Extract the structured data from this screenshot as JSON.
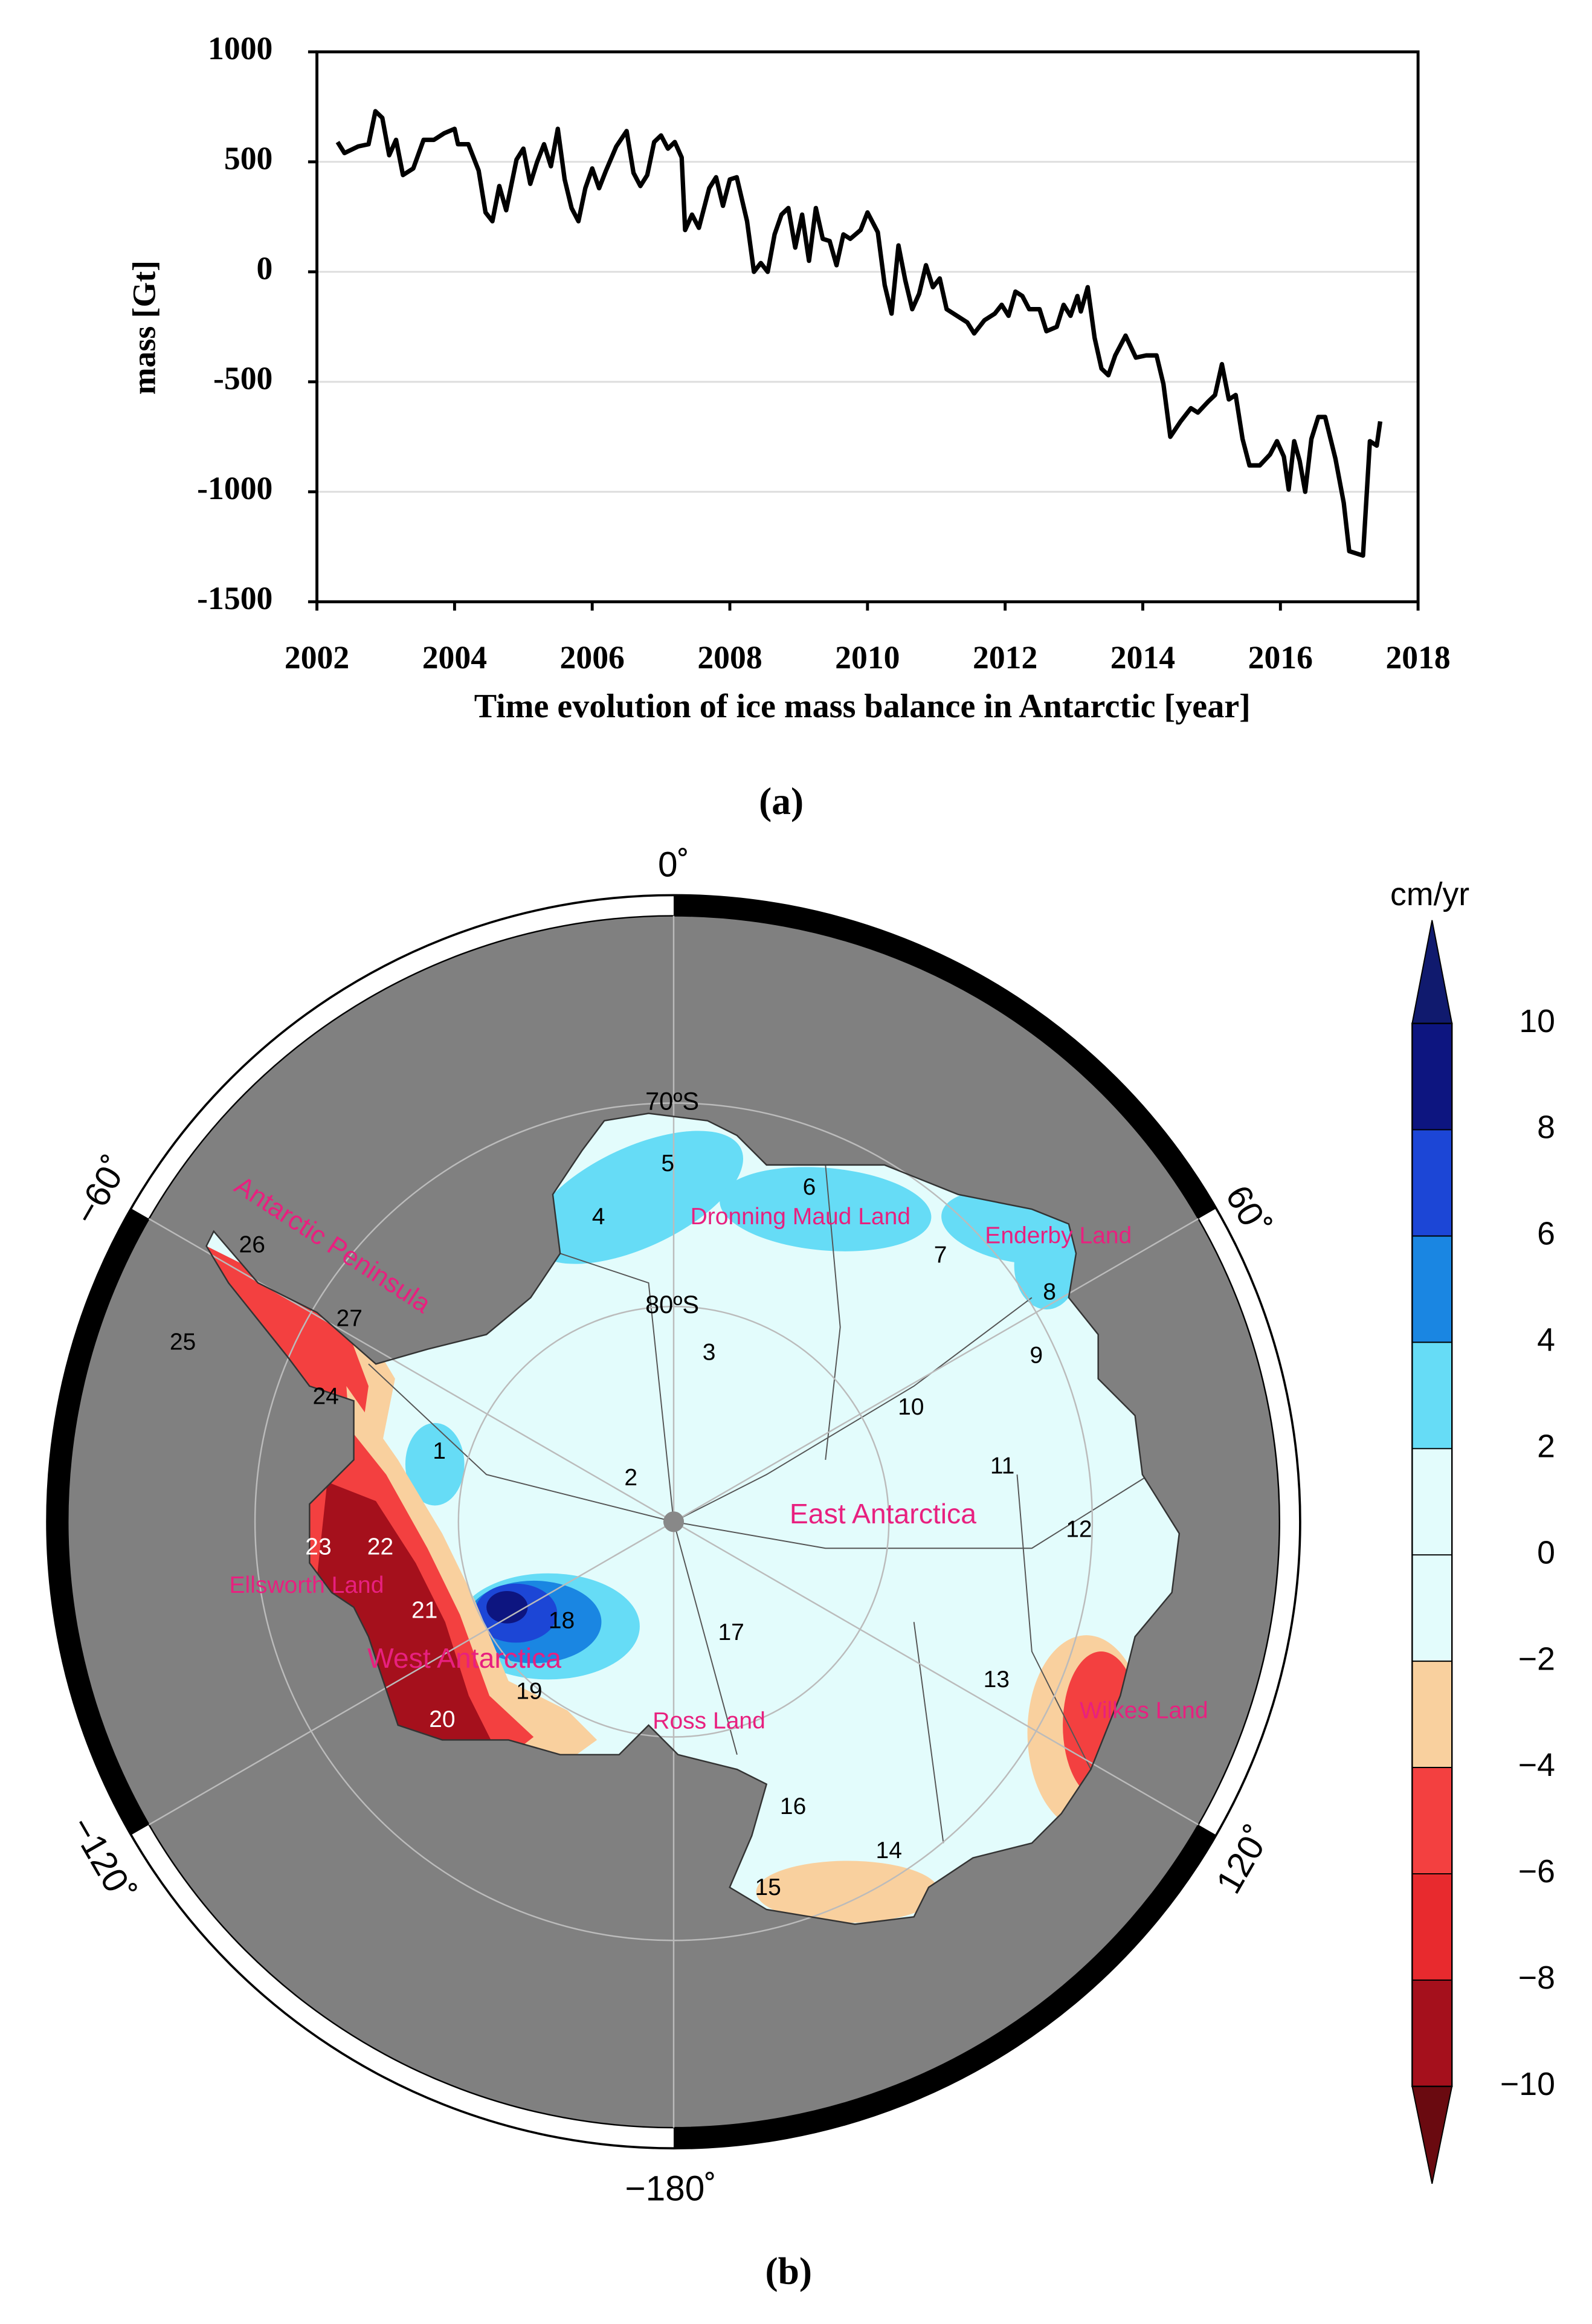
{
  "chart_data": [
    {
      "type": "line",
      "ylabel": "mass [Gt]",
      "xlabel": "Time evolution  of ice mass balance in Antarctic [year]",
      "x": [
        2002.3,
        2002.4,
        2002.6,
        2002.75,
        2002.85,
        2002.95,
        2003.05,
        2003.15,
        2003.25,
        2003.4,
        2003.55,
        2003.7,
        2003.85,
        2004.0,
        2004.05,
        2004.2,
        2004.35,
        2004.45,
        2004.55,
        2004.65,
        2004.75,
        2004.9,
        2005.0,
        2005.1,
        2005.2,
        2005.3,
        2005.4,
        2005.5,
        2005.6,
        2005.7,
        2005.8,
        2005.9,
        2006.0,
        2006.1,
        2006.2,
        2006.35,
        2006.5,
        2006.6,
        2006.7,
        2006.8,
        2006.9,
        2007.0,
        2007.1,
        2007.2,
        2007.3,
        2007.35,
        2007.45,
        2007.55,
        2007.7,
        2007.8,
        2007.9,
        2008.0,
        2008.1,
        2008.25,
        2008.35,
        2008.45,
        2008.55,
        2008.65,
        2008.75,
        2008.85,
        2008.95,
        2009.05,
        2009.15,
        2009.25,
        2009.35,
        2009.45,
        2009.55,
        2009.65,
        2009.75,
        2009.9,
        2010.0,
        2010.15,
        2010.25,
        2010.35,
        2010.45,
        2010.55,
        2010.65,
        2010.75,
        2010.85,
        2010.95,
        2011.05,
        2011.15,
        2011.3,
        2011.45,
        2011.55,
        2011.7,
        2011.85,
        2011.95,
        2012.05,
        2012.15,
        2012.25,
        2012.35,
        2012.5,
        2012.6,
        2012.75,
        2012.85,
        2012.95,
        2013.05,
        2013.1,
        2013.2,
        2013.3,
        2013.4,
        2013.5,
        2013.6,
        2013.75,
        2013.9,
        2014.05,
        2014.2,
        2014.3,
        2014.4,
        2014.55,
        2014.7,
        2014.8,
        2014.95,
        2015.05,
        2015.15,
        2015.25,
        2015.35,
        2015.45,
        2015.55,
        2015.7,
        2015.85,
        2015.95,
        2016.05,
        2016.12,
        2016.2,
        2016.28,
        2016.36,
        2016.45,
        2016.55,
        2016.65,
        2016.8,
        2016.92,
        2017.0,
        2017.2,
        2017.3,
        2017.4,
        2017.45
      ],
      "series": [
        {
          "color": "#000000",
          "values": [
            590,
            540,
            570,
            580,
            730,
            700,
            530,
            600,
            440,
            470,
            600,
            600,
            630,
            650,
            580,
            580,
            460,
            270,
            230,
            390,
            280,
            510,
            560,
            400,
            500,
            580,
            480,
            650,
            420,
            290,
            230,
            380,
            470,
            380,
            460,
            570,
            640,
            450,
            390,
            440,
            590,
            620,
            560,
            590,
            520,
            190,
            260,
            200,
            380,
            430,
            300,
            420,
            430,
            230,
            0,
            40,
            0,
            170,
            260,
            290,
            110,
            260,
            50,
            290,
            150,
            140,
            30,
            170,
            150,
            190,
            270,
            180,
            -60,
            -190,
            120,
            -40,
            -170,
            -100,
            30,
            -70,
            -30,
            -170,
            -200,
            -230,
            -280,
            -220,
            -190,
            -150,
            -200,
            -90,
            -110,
            -170,
            -170,
            -270,
            -250,
            -150,
            -200,
            -110,
            -180,
            -70,
            -300,
            -440,
            -470,
            -380,
            -290,
            -390,
            -380,
            -380,
            -510,
            -750,
            -680,
            -620,
            -640,
            -590,
            -560,
            -420,
            -580,
            -560,
            -760,
            -880,
            -880,
            -830,
            -770,
            -840,
            -990,
            -770,
            -860,
            -1000,
            -760,
            -660,
            -660,
            -850,
            -1050,
            -1270,
            -1290,
            -770,
            -790,
            -680
          ]
        }
      ],
      "xlim": [
        2002,
        2018
      ],
      "xticks": [
        2002,
        2004,
        2006,
        2008,
        2010,
        2012,
        2014,
        2016,
        2018
      ],
      "ylim": [
        -1500,
        1000
      ],
      "yticks": [
        -1500,
        -1000,
        -500,
        0,
        500,
        1000
      ],
      "grid": true
    },
    {
      "type": "map",
      "colorbar_label": "cm/yr",
      "colorbar_ticks": [
        {
          "value": -10,
          "label": "−10"
        },
        {
          "value": -8,
          "label": "−8"
        },
        {
          "value": -6,
          "label": "−6"
        },
        {
          "value": -4,
          "label": "−4"
        },
        {
          "value": -2,
          "label": "−2"
        },
        0,
        2,
        4,
        6,
        8,
        10
      ],
      "colorbar_colors": [
        "#a5101c",
        "#e82a2e",
        "#f34040",
        "#f9d09e",
        "#e3fcfc",
        "#e3fcfc",
        "#66dcf6",
        "#1a86e2",
        "#1c46d6",
        "#0d1580"
      ],
      "under_color": "#6a0a10",
      "over_color": "#101a6e",
      "meridian_labels": [
        "0˚",
        "60˚",
        "120˚",
        "−180˚",
        "−120˚",
        "−60˚"
      ],
      "parallel_labels": [
        "70ºS",
        "80ºS"
      ],
      "region_numbers": [
        "1",
        "2",
        "3",
        "4",
        "5",
        "6",
        "7",
        "8",
        "9",
        "10",
        "11",
        "12",
        "13",
        "14",
        "15",
        "16",
        "17",
        "18",
        "19",
        "20",
        "21",
        "22",
        "23",
        "24",
        "25",
        "26",
        "27"
      ],
      "region_names": [
        "Antarctic Peninsula",
        "Dronning Maud Land",
        "Enderby Land",
        "East  Antarctica",
        "Ellsworth Land",
        "West  Antarctica",
        "Ross Land",
        "Wilkes Land"
      ]
    }
  ],
  "captions": [
    "(a)",
    "(b)"
  ]
}
